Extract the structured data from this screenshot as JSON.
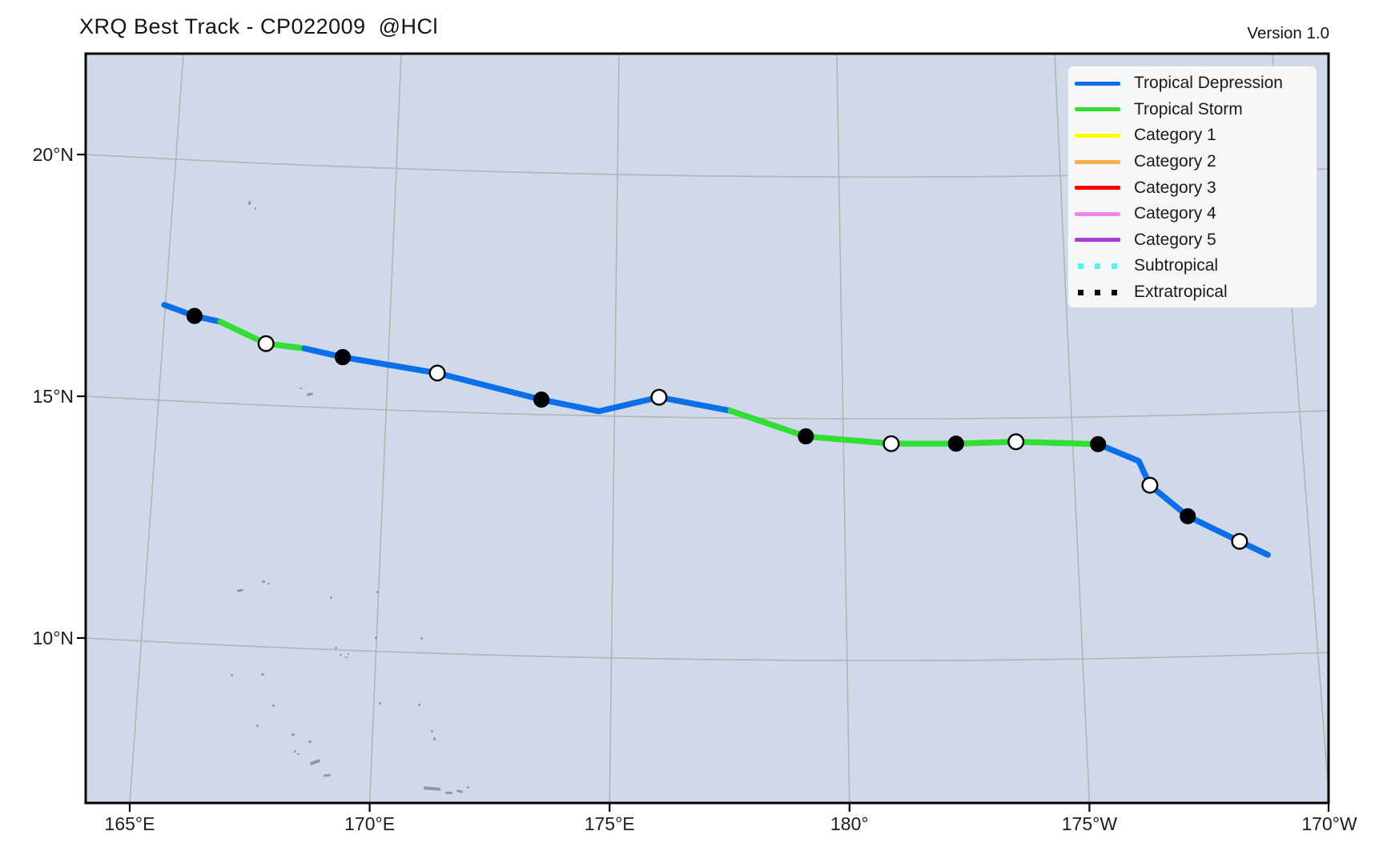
{
  "header": {
    "title": "XRQ Best Track - CP022009  @HCl",
    "version": "Version 1.0"
  },
  "map": {
    "water_color": "#cfd9ea",
    "grid_color": "#b5b3b0",
    "border_color": "#000000",
    "island_color": "#93989a",
    "islands": [
      [
        310,
        251,
        3,
        5,
        15
      ],
      [
        318,
        259,
        2,
        3,
        0
      ],
      [
        374,
        484,
        3,
        2,
        0
      ],
      [
        383,
        491,
        8,
        3,
        -12
      ],
      [
        296,
        736,
        8,
        3,
        -10
      ],
      [
        327,
        725,
        4,
        3,
        0
      ],
      [
        334,
        728,
        3,
        2,
        0
      ],
      [
        412,
        745,
        3,
        3,
        0
      ],
      [
        470,
        738,
        3,
        3,
        0
      ],
      [
        468,
        795,
        3,
        3,
        0
      ],
      [
        525,
        796,
        3,
        3,
        0
      ],
      [
        418,
        808,
        3,
        3,
        0
      ],
      [
        424,
        817,
        3,
        2,
        0
      ],
      [
        431,
        820,
        3,
        2,
        0
      ],
      [
        434,
        816,
        2,
        2,
        0
      ],
      [
        288,
        842,
        3,
        3,
        0
      ],
      [
        326,
        841,
        4,
        3,
        0
      ],
      [
        340,
        880,
        3,
        3,
        0
      ],
      [
        473,
        877,
        3,
        3,
        0
      ],
      [
        522,
        879,
        3,
        3,
        0
      ],
      [
        320,
        905,
        3,
        3,
        0
      ],
      [
        364,
        916,
        4,
        3,
        0
      ],
      [
        538,
        912,
        3,
        3,
        0
      ],
      [
        541,
        921,
        3,
        4,
        0
      ],
      [
        385,
        925,
        4,
        3,
        0
      ],
      [
        367,
        937,
        3,
        3,
        0
      ],
      [
        371,
        941,
        3,
        2,
        0
      ],
      [
        387,
        950,
        13,
        4,
        -20
      ],
      [
        404,
        967,
        9,
        3,
        -8
      ],
      [
        529,
        983,
        21,
        4,
        5
      ],
      [
        556,
        989,
        9,
        3,
        0
      ],
      [
        570,
        987,
        8,
        3,
        12
      ],
      [
        583,
        982,
        3,
        3,
        0
      ]
    ]
  },
  "legend": {
    "items": [
      {
        "label": "Tropical Depression",
        "color": "#0b70e8",
        "style": "solid"
      },
      {
        "label": "Tropical Storm",
        "color": "#33dd33",
        "style": "solid"
      },
      {
        "label": "Category 1",
        "color": "#ffff00",
        "style": "solid"
      },
      {
        "label": "Category 2",
        "color": "#f6b04e",
        "style": "solid"
      },
      {
        "label": "Category 3",
        "color": "#fe0000",
        "style": "solid"
      },
      {
        "label": "Category 4",
        "color": "#ee86ee",
        "style": "solid"
      },
      {
        "label": "Category 5",
        "color": "#a33bd4",
        "style": "solid"
      },
      {
        "label": "Subtropical",
        "color": "#55f2f2",
        "style": "dotted"
      },
      {
        "label": "Extratropical",
        "color": "#000000",
        "style": "dotted"
      }
    ]
  },
  "chart_data": {
    "type": "line",
    "title": "XRQ Best Track - CP022009  @HCl",
    "x_axis": {
      "ticks": [
        {
          "label": "165°E",
          "lon": 165
        },
        {
          "label": "170°E",
          "lon": 170
        },
        {
          "label": "175°E",
          "lon": 175
        },
        {
          "label": "180°",
          "lon": 180
        },
        {
          "label": "175°W",
          "lon": 185
        },
        {
          "label": "170°W",
          "lon": 190
        }
      ]
    },
    "y_axis": {
      "ticks": [
        {
          "label": "10°N",
          "lat": 10
        },
        {
          "label": "15°N",
          "lat": 15
        },
        {
          "label": "20°N",
          "lat": 20
        }
      ]
    },
    "status_colors": {
      "TD": "#0b70e8",
      "TS": "#33dd33"
    },
    "track": [
      {
        "lon": 165.72,
        "lat": 16.89,
        "marker": "none",
        "status": "TD"
      },
      {
        "lon": 166.35,
        "lat": 16.66,
        "marker": "filled",
        "status": "TD"
      },
      {
        "lon": 166.89,
        "lat": 16.54,
        "marker": "none",
        "status": "TS"
      },
      {
        "lon": 167.84,
        "lat": 16.09,
        "marker": "open",
        "status": "TS"
      },
      {
        "lon": 168.64,
        "lat": 15.99,
        "marker": "none",
        "status": "TD"
      },
      {
        "lon": 169.44,
        "lat": 15.81,
        "marker": "filled",
        "status": "TD"
      },
      {
        "lon": 171.41,
        "lat": 15.48,
        "marker": "open",
        "status": "TD"
      },
      {
        "lon": 173.58,
        "lat": 14.93,
        "marker": "filled",
        "status": "TD"
      },
      {
        "lon": 174.78,
        "lat": 14.69,
        "marker": "none",
        "status": "TD"
      },
      {
        "lon": 176.03,
        "lat": 14.98,
        "marker": "open",
        "status": "TD"
      },
      {
        "lon": 177.52,
        "lat": 14.7,
        "marker": "none",
        "status": "TS"
      },
      {
        "lon": 179.09,
        "lat": 14.17,
        "marker": "filled",
        "status": "TS"
      },
      {
        "lon": 180.87,
        "lat": 14.02,
        "marker": "open",
        "status": "TS"
      },
      {
        "lon": 182.22,
        "lat": 14.02,
        "marker": "filled",
        "status": "TS"
      },
      {
        "lon": 183.47,
        "lat": 14.06,
        "marker": "open",
        "status": "TS"
      },
      {
        "lon": 185.18,
        "lat": 14.01,
        "marker": "filled",
        "status": "TD"
      },
      {
        "lon": 186.03,
        "lat": 13.66,
        "marker": "none",
        "status": "TD"
      },
      {
        "lon": 186.26,
        "lat": 13.16,
        "marker": "open",
        "status": "TD"
      },
      {
        "lon": 187.05,
        "lat": 12.52,
        "marker": "filled",
        "status": "TD"
      },
      {
        "lon": 188.13,
        "lat": 12.0,
        "marker": "open",
        "status": "TD"
      },
      {
        "lon": 188.72,
        "lat": 11.72,
        "marker": "none",
        "status": null
      }
    ]
  }
}
